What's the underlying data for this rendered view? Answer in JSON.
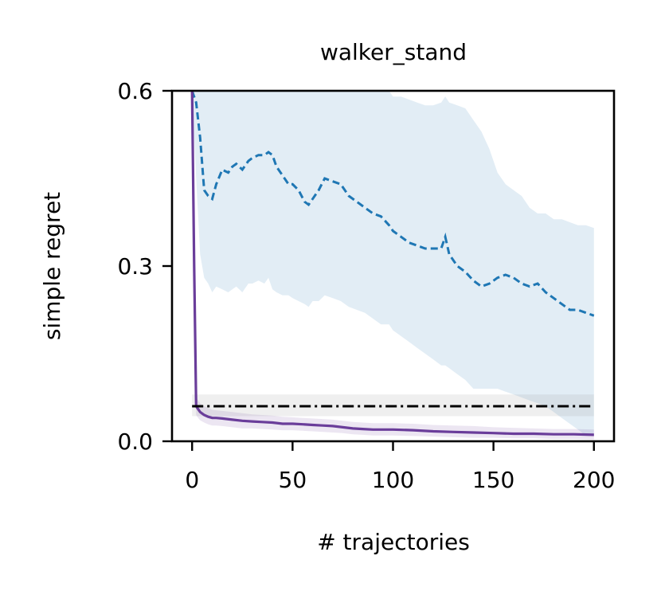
{
  "chart_data": {
    "type": "line",
    "title": "walker_stand",
    "xlabel": "# trajectories",
    "ylabel": "simple regret",
    "xlim": [
      -10,
      210
    ],
    "ylim": [
      0,
      0.6
    ],
    "xticks": [
      0,
      50,
      100,
      150,
      200
    ],
    "xtick_labels": [
      "0",
      "50",
      "100",
      "150",
      "200"
    ],
    "yticks": [
      0.0,
      0.3,
      0.6
    ],
    "ytick_labels": [
      "0.0",
      "0.3",
      "0.6"
    ],
    "grid": false,
    "series": [
      {
        "color": "#1f77b4",
        "line_style": "dashed",
        "x": [
          0,
          2,
          4,
          6,
          8,
          10,
          12,
          15,
          18,
          20,
          22,
          25,
          28,
          30,
          33,
          36,
          38,
          40,
          42,
          45,
          48,
          50,
          53,
          56,
          58,
          60,
          63,
          66,
          70,
          74,
          78,
          82,
          86,
          90,
          94,
          98,
          100,
          104,
          108,
          112,
          116,
          120,
          124,
          126,
          128,
          132,
          136,
          140,
          144,
          148,
          152,
          156,
          160,
          164,
          168,
          172,
          176,
          180,
          184,
          188,
          192,
          196,
          200
        ],
        "y": [
          0.6,
          0.58,
          0.52,
          0.43,
          0.42,
          0.415,
          0.44,
          0.465,
          0.46,
          0.47,
          0.475,
          0.465,
          0.48,
          0.485,
          0.49,
          0.49,
          0.495,
          0.49,
          0.47,
          0.455,
          0.44,
          0.44,
          0.43,
          0.41,
          0.405,
          0.415,
          0.43,
          0.45,
          0.445,
          0.44,
          0.42,
          0.41,
          0.4,
          0.39,
          0.385,
          0.37,
          0.36,
          0.35,
          0.34,
          0.335,
          0.33,
          0.33,
          0.33,
          0.35,
          0.32,
          0.3,
          0.29,
          0.275,
          0.265,
          0.27,
          0.28,
          0.285,
          0.28,
          0.27,
          0.265,
          0.27,
          0.255,
          0.245,
          0.235,
          0.225,
          0.225,
          0.22,
          0.215
        ],
        "band_upper": [
          0.6,
          0.6,
          0.6,
          0.6,
          0.6,
          0.6,
          0.6,
          0.6,
          0.6,
          0.6,
          0.6,
          0.6,
          0.6,
          0.6,
          0.6,
          0.6,
          0.6,
          0.6,
          0.6,
          0.6,
          0.6,
          0.6,
          0.6,
          0.6,
          0.6,
          0.6,
          0.6,
          0.6,
          0.6,
          0.6,
          0.6,
          0.6,
          0.6,
          0.6,
          0.6,
          0.6,
          0.59,
          0.59,
          0.585,
          0.58,
          0.575,
          0.575,
          0.58,
          0.59,
          0.58,
          0.575,
          0.57,
          0.55,
          0.53,
          0.5,
          0.46,
          0.44,
          0.43,
          0.42,
          0.4,
          0.39,
          0.39,
          0.38,
          0.38,
          0.375,
          0.37,
          0.37,
          0.365
        ],
        "band_lower": [
          0.6,
          0.45,
          0.32,
          0.28,
          0.27,
          0.255,
          0.265,
          0.26,
          0.255,
          0.26,
          0.265,
          0.255,
          0.27,
          0.27,
          0.275,
          0.27,
          0.28,
          0.26,
          0.255,
          0.25,
          0.25,
          0.245,
          0.24,
          0.235,
          0.23,
          0.24,
          0.24,
          0.25,
          0.245,
          0.24,
          0.23,
          0.225,
          0.22,
          0.21,
          0.2,
          0.2,
          0.19,
          0.18,
          0.17,
          0.16,
          0.15,
          0.14,
          0.13,
          0.13,
          0.125,
          0.115,
          0.105,
          0.09,
          0.09,
          0.09,
          0.09,
          0.085,
          0.08,
          0.075,
          0.07,
          0.065,
          0.06,
          0.05,
          0.04,
          0.03,
          0.02,
          0.01,
          0.01
        ]
      },
      {
        "color": "#6a3d9a",
        "line_style": "solid",
        "x": [
          0,
          1,
          2,
          3,
          4,
          6,
          8,
          10,
          12,
          15,
          20,
          25,
          30,
          35,
          40,
          45,
          50,
          55,
          60,
          65,
          70,
          75,
          80,
          85,
          90,
          95,
          100,
          110,
          120,
          130,
          140,
          150,
          160,
          170,
          180,
          190,
          200
        ],
        "y": [
          0.6,
          0.3,
          0.06,
          0.055,
          0.05,
          0.045,
          0.042,
          0.04,
          0.04,
          0.039,
          0.037,
          0.035,
          0.034,
          0.033,
          0.032,
          0.03,
          0.03,
          0.029,
          0.028,
          0.027,
          0.026,
          0.024,
          0.022,
          0.021,
          0.02,
          0.02,
          0.02,
          0.019,
          0.017,
          0.016,
          0.015,
          0.014,
          0.013,
          0.013,
          0.012,
          0.012,
          0.011
        ],
        "band_upper": [
          0.6,
          0.35,
          0.075,
          0.07,
          0.065,
          0.06,
          0.057,
          0.054,
          0.053,
          0.052,
          0.05,
          0.048,
          0.046,
          0.045,
          0.044,
          0.042,
          0.041,
          0.04,
          0.039,
          0.038,
          0.037,
          0.035,
          0.033,
          0.032,
          0.031,
          0.031,
          0.031,
          0.03,
          0.028,
          0.027,
          0.026,
          0.024,
          0.023,
          0.022,
          0.021,
          0.021,
          0.02
        ],
        "band_lower": [
          0.6,
          0.25,
          0.045,
          0.04,
          0.036,
          0.032,
          0.029,
          0.027,
          0.027,
          0.026,
          0.024,
          0.022,
          0.022,
          0.021,
          0.02,
          0.019,
          0.019,
          0.018,
          0.017,
          0.016,
          0.015,
          0.014,
          0.012,
          0.011,
          0.01,
          0.01,
          0.01,
          0.009,
          0.008,
          0.007,
          0.006,
          0.006,
          0.005,
          0.005,
          0.004,
          0.004,
          0.003
        ]
      },
      {
        "color": "#000000",
        "line_style": "dashdot",
        "x": [
          0,
          200
        ],
        "y": [
          0.06,
          0.06
        ],
        "band_upper": [
          0.08,
          0.08
        ],
        "band_lower": [
          0.043,
          0.043
        ]
      }
    ]
  }
}
